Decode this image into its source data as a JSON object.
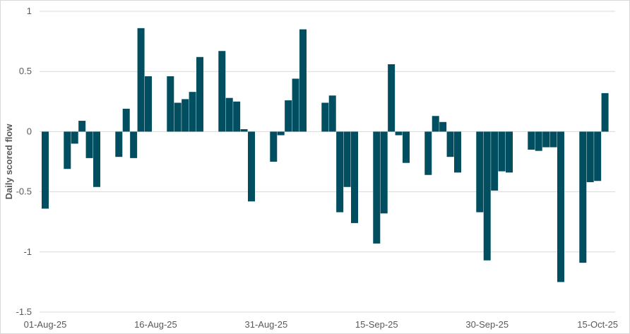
{
  "chart_data": {
    "type": "bar",
    "title": "",
    "xlabel": "",
    "ylabel": "Daily scored flow",
    "ylim": [
      -1.5,
      1
    ],
    "yticks": [
      1,
      0.5,
      0,
      -0.5,
      -1,
      -1.5
    ],
    "ytick_labels": [
      "1",
      "0.5",
      "0",
      "-0.5",
      "-1",
      "-1.5"
    ],
    "xtick_labels": [
      "01-Aug-25",
      "16-Aug-25",
      "31-Aug-25",
      "15-Sep-25",
      "30-Sep-25",
      "15-Oct-25"
    ],
    "xtick_dates": [
      "2025-08-01",
      "2025-08-16",
      "2025-08-31",
      "2025-09-15",
      "2025-09-30",
      "2025-10-15"
    ],
    "x_range": [
      "2025-08-01",
      "2025-10-17"
    ],
    "grid": true,
    "bar_color": "#004e5f",
    "series": [
      {
        "x": [
          "2025-08-01",
          "2025-08-04",
          "2025-08-05",
          "2025-08-06",
          "2025-08-07",
          "2025-08-08",
          "2025-08-11",
          "2025-08-12",
          "2025-08-13",
          "2025-08-14",
          "2025-08-15",
          "2025-08-18",
          "2025-08-19",
          "2025-08-20",
          "2025-08-21",
          "2025-08-22",
          "2025-08-25",
          "2025-08-26",
          "2025-08-27",
          "2025-08-28",
          "2025-08-29",
          "2025-09-01",
          "2025-09-02",
          "2025-09-03",
          "2025-09-04",
          "2025-09-05",
          "2025-09-08",
          "2025-09-09",
          "2025-09-10",
          "2025-09-11",
          "2025-09-12",
          "2025-09-15",
          "2025-09-16",
          "2025-09-17",
          "2025-09-18",
          "2025-09-19",
          "2025-09-22",
          "2025-09-23",
          "2025-09-24",
          "2025-09-25",
          "2025-09-26",
          "2025-09-29",
          "2025-09-30",
          "2025-10-01",
          "2025-10-02",
          "2025-10-03",
          "2025-10-06",
          "2025-10-07",
          "2025-10-08",
          "2025-10-09",
          "2025-10-10",
          "2025-10-13",
          "2025-10-14",
          "2025-10-15",
          "2025-10-16"
        ],
        "values": [
          -0.64,
          -0.31,
          -0.1,
          0.09,
          -0.22,
          -0.46,
          -0.21,
          0.19,
          -0.22,
          0.86,
          0.46,
          0.46,
          0.24,
          0.27,
          0.33,
          0.62,
          0.67,
          0.28,
          0.25,
          0.02,
          -0.58,
          -0.25,
          -0.03,
          0.26,
          0.44,
          0.85,
          0.24,
          0.3,
          -0.67,
          -0.46,
          -0.76,
          -0.93,
          -0.68,
          0.56,
          -0.03,
          -0.26,
          -0.36,
          0.13,
          0.08,
          -0.21,
          -0.34,
          -0.67,
          -1.07,
          -0.49,
          -0.33,
          -0.34,
          -0.15,
          -0.16,
          -0.13,
          -0.13,
          -1.25,
          -1.09,
          -0.42,
          -0.41,
          0.32
        ]
      }
    ]
  }
}
